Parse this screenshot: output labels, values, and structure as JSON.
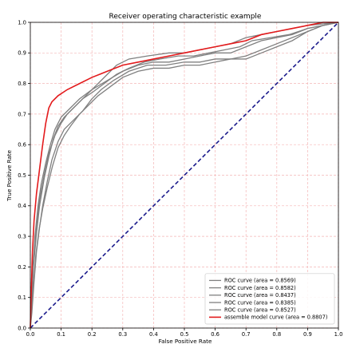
{
  "chart_data": {
    "type": "line",
    "title": "Receiver operating characteristic example",
    "xlabel": "False Positive Rate",
    "ylabel": "True Positive Rate",
    "xlim": [
      0.0,
      1.0
    ],
    "ylim": [
      0.0,
      1.0
    ],
    "xticks": [
      "0.0",
      "0.1",
      "0.2",
      "0.3",
      "0.4",
      "0.5",
      "0.6",
      "0.7",
      "0.8",
      "0.9",
      "1.0"
    ],
    "yticks": [
      "0.0",
      "0.1",
      "0.2",
      "0.3",
      "0.4",
      "0.5",
      "0.6",
      "0.7",
      "0.8",
      "0.9",
      "1.0"
    ],
    "grid": true,
    "legend_position": "lower-right",
    "colors": {
      "roc": "#808080",
      "assemble": "#e31a1c",
      "diagonal": "#1a1a8c",
      "grid": "#f4b6b6"
    },
    "series": [
      {
        "name": "ROC curve (area = 0.8569)",
        "color": "#808080",
        "points": [
          [
            0,
            0
          ],
          [
            0.003,
            0.07
          ],
          [
            0.008,
            0.18
          ],
          [
            0.015,
            0.3
          ],
          [
            0.025,
            0.4
          ],
          [
            0.035,
            0.47
          ],
          [
            0.05,
            0.54
          ],
          [
            0.065,
            0.6
          ],
          [
            0.08,
            0.65
          ],
          [
            0.1,
            0.69
          ],
          [
            0.13,
            0.72
          ],
          [
            0.16,
            0.75
          ],
          [
            0.2,
            0.78
          ],
          [
            0.25,
            0.81
          ],
          [
            0.3,
            0.84
          ],
          [
            0.35,
            0.86
          ],
          [
            0.4,
            0.87
          ],
          [
            0.45,
            0.87
          ],
          [
            0.5,
            0.88
          ],
          [
            0.55,
            0.89
          ],
          [
            0.6,
            0.9
          ],
          [
            0.65,
            0.9
          ],
          [
            0.7,
            0.92
          ],
          [
            0.75,
            0.94
          ],
          [
            0.8,
            0.95
          ],
          [
            0.85,
            0.96
          ],
          [
            0.9,
            0.98
          ],
          [
            0.95,
            0.99
          ],
          [
            1,
            1
          ]
        ]
      },
      {
        "name": "ROC curve (area = 0.8582)",
        "color": "#808080",
        "points": [
          [
            0,
            0
          ],
          [
            0.005,
            0.1
          ],
          [
            0.01,
            0.22
          ],
          [
            0.02,
            0.33
          ],
          [
            0.03,
            0.42
          ],
          [
            0.045,
            0.5
          ],
          [
            0.06,
            0.57
          ],
          [
            0.08,
            0.63
          ],
          [
            0.1,
            0.67
          ],
          [
            0.12,
            0.7
          ],
          [
            0.15,
            0.73
          ],
          [
            0.18,
            0.76
          ],
          [
            0.21,
            0.79
          ],
          [
            0.25,
            0.83
          ],
          [
            0.28,
            0.86
          ],
          [
            0.32,
            0.88
          ],
          [
            0.38,
            0.89
          ],
          [
            0.45,
            0.9
          ],
          [
            0.5,
            0.9
          ],
          [
            0.55,
            0.91
          ],
          [
            0.6,
            0.92
          ],
          [
            0.65,
            0.93
          ],
          [
            0.7,
            0.95
          ],
          [
            0.75,
            0.96
          ],
          [
            0.8,
            0.97
          ],
          [
            0.85,
            0.98
          ],
          [
            0.9,
            0.99
          ],
          [
            1,
            1
          ]
        ]
      },
      {
        "name": "ROC curve (area = 0.8437)",
        "color": "#808080",
        "points": [
          [
            0,
            0
          ],
          [
            0.005,
            0.05
          ],
          [
            0.012,
            0.15
          ],
          [
            0.02,
            0.25
          ],
          [
            0.03,
            0.33
          ],
          [
            0.04,
            0.4
          ],
          [
            0.055,
            0.48
          ],
          [
            0.07,
            0.55
          ],
          [
            0.09,
            0.61
          ],
          [
            0.11,
            0.65
          ],
          [
            0.14,
            0.68
          ],
          [
            0.17,
            0.71
          ],
          [
            0.2,
            0.75
          ],
          [
            0.23,
            0.78
          ],
          [
            0.27,
            0.81
          ],
          [
            0.32,
            0.84
          ],
          [
            0.38,
            0.86
          ],
          [
            0.44,
            0.86
          ],
          [
            0.5,
            0.87
          ],
          [
            0.55,
            0.87
          ],
          [
            0.6,
            0.88
          ],
          [
            0.65,
            0.88
          ],
          [
            0.7,
            0.89
          ],
          [
            0.75,
            0.91
          ],
          [
            0.8,
            0.93
          ],
          [
            0.85,
            0.95
          ],
          [
            0.9,
            0.97
          ],
          [
            0.95,
            0.99
          ],
          [
            1,
            1
          ]
        ]
      },
      {
        "name": "ROC curve (area = 0.8385)",
        "color": "#808080",
        "points": [
          [
            0,
            0
          ],
          [
            0.004,
            0.06
          ],
          [
            0.01,
            0.14
          ],
          [
            0.018,
            0.24
          ],
          [
            0.028,
            0.32
          ],
          [
            0.04,
            0.39
          ],
          [
            0.055,
            0.46
          ],
          [
            0.072,
            0.53
          ],
          [
            0.09,
            0.59
          ],
          [
            0.11,
            0.63
          ],
          [
            0.13,
            0.66
          ],
          [
            0.16,
            0.7
          ],
          [
            0.19,
            0.73
          ],
          [
            0.22,
            0.76
          ],
          [
            0.26,
            0.79
          ],
          [
            0.3,
            0.82
          ],
          [
            0.35,
            0.84
          ],
          [
            0.4,
            0.85
          ],
          [
            0.45,
            0.85
          ],
          [
            0.5,
            0.86
          ],
          [
            0.55,
            0.86
          ],
          [
            0.6,
            0.87
          ],
          [
            0.65,
            0.88
          ],
          [
            0.7,
            0.88
          ],
          [
            0.75,
            0.9
          ],
          [
            0.8,
            0.92
          ],
          [
            0.85,
            0.94
          ],
          [
            0.9,
            0.97
          ],
          [
            0.95,
            0.99
          ],
          [
            1,
            1
          ]
        ]
      },
      {
        "name": "ROC curve (area = 0.8527)",
        "color": "#808080",
        "points": [
          [
            0,
            0
          ],
          [
            0.004,
            0.08
          ],
          [
            0.01,
            0.2
          ],
          [
            0.02,
            0.31
          ],
          [
            0.03,
            0.4
          ],
          [
            0.045,
            0.49
          ],
          [
            0.06,
            0.56
          ],
          [
            0.075,
            0.62
          ],
          [
            0.09,
            0.66
          ],
          [
            0.11,
            0.69
          ],
          [
            0.14,
            0.72
          ],
          [
            0.17,
            0.75
          ],
          [
            0.2,
            0.77
          ],
          [
            0.24,
            0.8
          ],
          [
            0.28,
            0.83
          ],
          [
            0.32,
            0.85
          ],
          [
            0.37,
            0.87
          ],
          [
            0.42,
            0.88
          ],
          [
            0.48,
            0.89
          ],
          [
            0.53,
            0.89
          ],
          [
            0.58,
            0.9
          ],
          [
            0.63,
            0.91
          ],
          [
            0.68,
            0.92
          ],
          [
            0.72,
            0.94
          ],
          [
            0.78,
            0.95
          ],
          [
            0.84,
            0.96
          ],
          [
            0.9,
            0.98
          ],
          [
            0.95,
            0.99
          ],
          [
            1,
            1
          ]
        ]
      },
      {
        "name": "assemble model curve (area = 0.8807)",
        "color": "#e31a1c",
        "points": [
          [
            0,
            0
          ],
          [
            0.003,
            0.12
          ],
          [
            0.007,
            0.25
          ],
          [
            0.012,
            0.35
          ],
          [
            0.02,
            0.44
          ],
          [
            0.03,
            0.52
          ],
          [
            0.04,
            0.6
          ],
          [
            0.05,
            0.67
          ],
          [
            0.06,
            0.72
          ],
          [
            0.07,
            0.74
          ],
          [
            0.09,
            0.76
          ],
          [
            0.12,
            0.78
          ],
          [
            0.16,
            0.8
          ],
          [
            0.2,
            0.82
          ],
          [
            0.25,
            0.84
          ],
          [
            0.3,
            0.86
          ],
          [
            0.35,
            0.87
          ],
          [
            0.4,
            0.88
          ],
          [
            0.45,
            0.89
          ],
          [
            0.5,
            0.9
          ],
          [
            0.55,
            0.91
          ],
          [
            0.6,
            0.92
          ],
          [
            0.65,
            0.93
          ],
          [
            0.7,
            0.94
          ],
          [
            0.75,
            0.96
          ],
          [
            0.8,
            0.97
          ],
          [
            0.85,
            0.98
          ],
          [
            0.9,
            0.99
          ],
          [
            0.95,
            1
          ],
          [
            1,
            1
          ]
        ]
      }
    ]
  }
}
